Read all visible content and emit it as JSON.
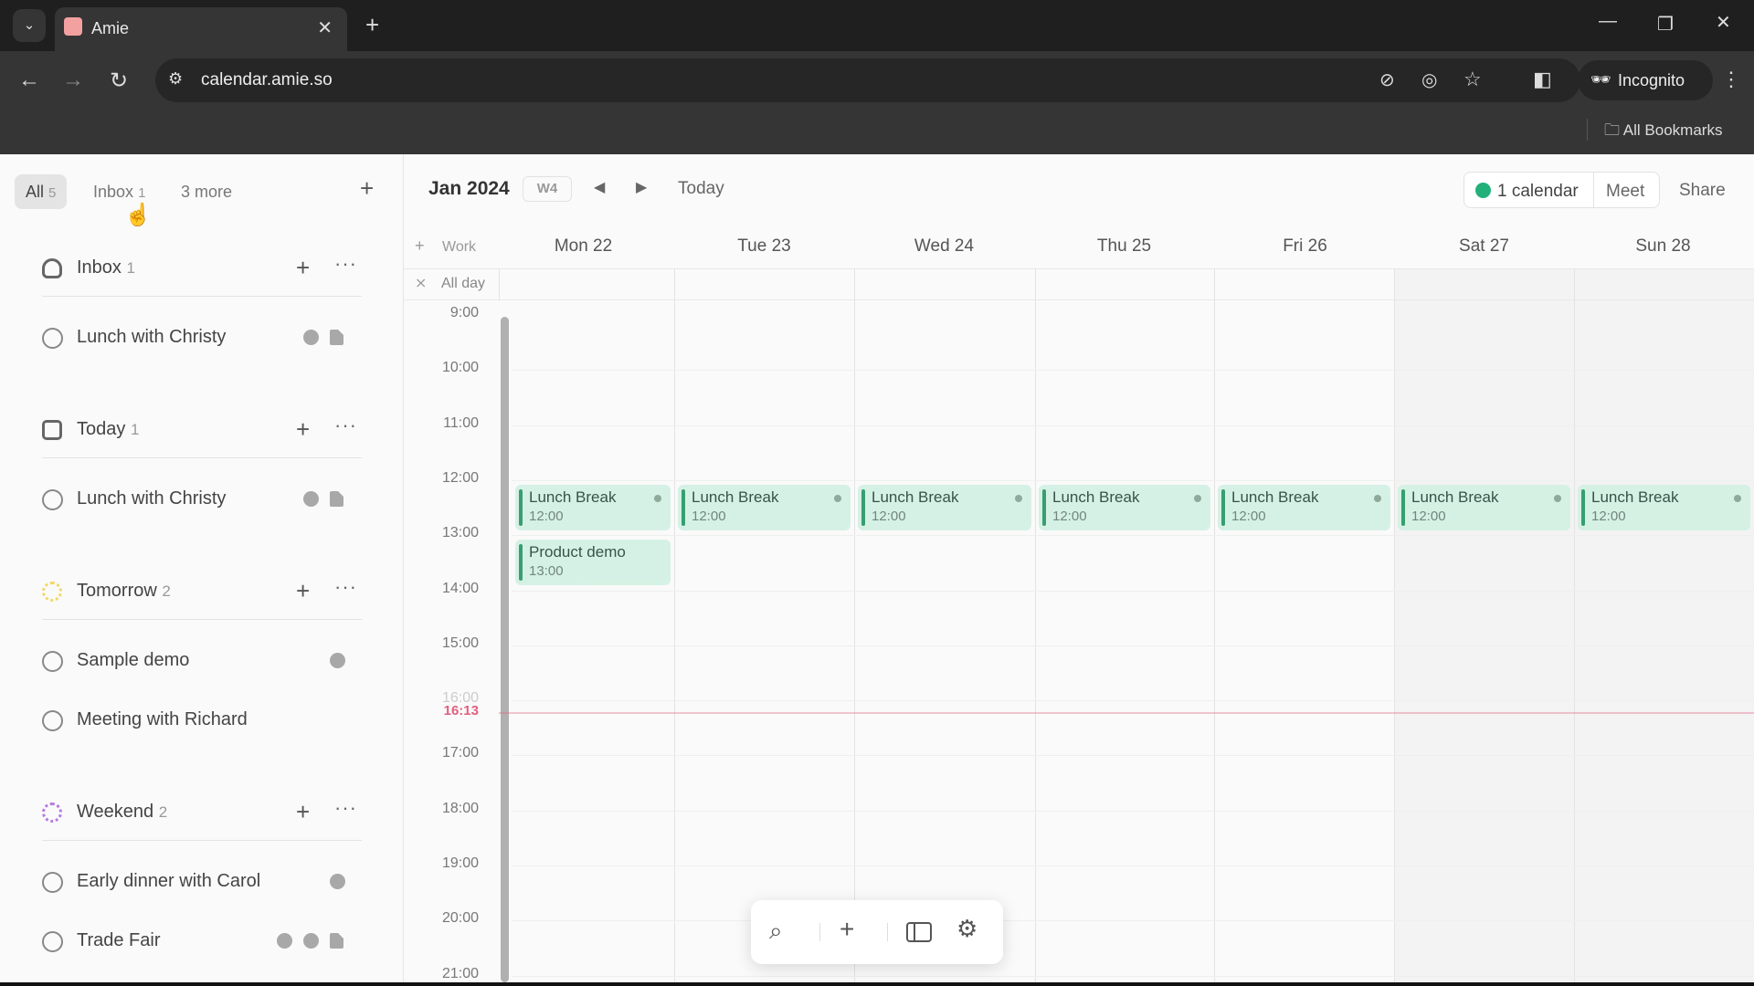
{
  "browser": {
    "tab_title": "Amie",
    "url": "calendar.amie.so",
    "profile": "Incognito",
    "bookmarks": "All Bookmarks"
  },
  "sidebar": {
    "filters": [
      {
        "label": "All",
        "count": "5"
      },
      {
        "label": "Inbox",
        "count": "1"
      },
      {
        "label": "3 more",
        "count": ""
      }
    ],
    "sections": [
      {
        "label": "Inbox",
        "count": "1",
        "icon": "inbox-icon",
        "tasks": [
          {
            "label": "Lunch with Christy",
            "icons": [
              "clock-icon",
              "note-icon"
            ]
          }
        ]
      },
      {
        "label": "Today",
        "count": "1",
        "icon": "calendar-today-icon",
        "tasks": [
          {
            "label": "Lunch with Christy",
            "icons": [
              "clock-icon",
              "note-icon"
            ]
          }
        ]
      },
      {
        "label": "Tomorrow",
        "count": "2",
        "icon": "tomorrow-sun-icon",
        "color": "#f0d86a",
        "tasks": [
          {
            "label": "Sample demo",
            "icons": [
              "clock-icon"
            ]
          },
          {
            "label": "Meeting with Richard",
            "icons": []
          }
        ]
      },
      {
        "label": "Weekend",
        "count": "2",
        "icon": "weekend-icon",
        "color": "#b57be0",
        "tasks": [
          {
            "label": "Early dinner with Carol",
            "icons": [
              "clock-icon"
            ]
          },
          {
            "label": "Trade Fair",
            "icons": [
              "clock-icon",
              "location-icon",
              "note-icon"
            ]
          }
        ]
      }
    ]
  },
  "calendar": {
    "title": "Jan 2024",
    "week": "W4",
    "today_label": "Today",
    "calendars_label": "1 calendar",
    "calendar_color": "#22b07a",
    "meet_label": "Meet",
    "share_label": "Share",
    "work_label": "Work",
    "allday_label": "All day",
    "days": [
      "Mon 22",
      "Tue 23",
      "Wed 24",
      "Thu 25",
      "Fri 26",
      "Sat 27",
      "Sun 28"
    ],
    "hours": [
      "9:00",
      "10:00",
      "11:00",
      "12:00",
      "13:00",
      "14:00",
      "15:00",
      "16:00",
      "17:00",
      "18:00",
      "19:00",
      "20:00",
      "21:00"
    ],
    "now": "16:13",
    "now_color": "#e0607e",
    "events": [
      {
        "day": 0,
        "title": "Lunch Break",
        "time": "12:00"
      },
      {
        "day": 0,
        "title": "Product demo",
        "time": "13:00"
      },
      {
        "day": 1,
        "title": "Lunch Break",
        "time": "12:00"
      },
      {
        "day": 2,
        "title": "Lunch Break",
        "time": "12:00"
      },
      {
        "day": 3,
        "title": "Lunch Break",
        "time": "12:00"
      },
      {
        "day": 4,
        "title": "Lunch Break",
        "time": "12:00"
      },
      {
        "day": 5,
        "title": "Lunch Break",
        "time": "12:00"
      },
      {
        "day": 6,
        "title": "Lunch Break",
        "time": "12:00"
      }
    ]
  }
}
